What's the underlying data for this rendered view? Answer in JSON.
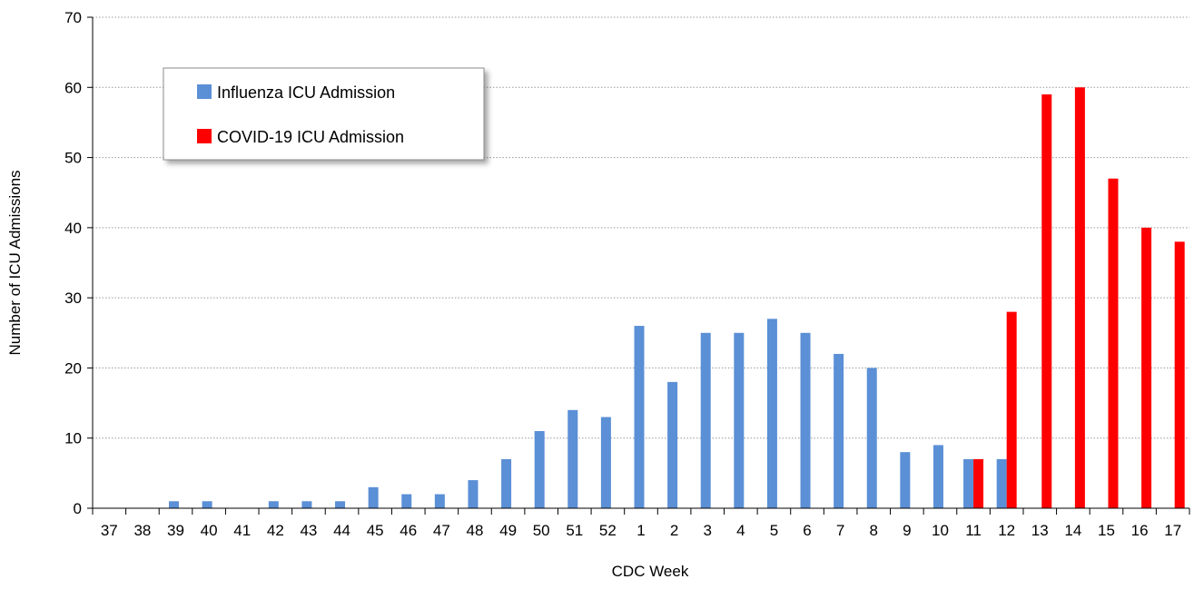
{
  "chart_data": {
    "type": "bar",
    "title": "",
    "xlabel": "CDC Week",
    "ylabel": "Number of ICU Admissions",
    "ylim": [
      0,
      70
    ],
    "yticks": [
      0,
      10,
      20,
      30,
      40,
      50,
      60,
      70
    ],
    "grid": "horizontal dotted",
    "legend_position": "top-left",
    "categories": [
      "37",
      "38",
      "39",
      "40",
      "41",
      "42",
      "43",
      "44",
      "45",
      "46",
      "47",
      "48",
      "49",
      "50",
      "51",
      "52",
      "1",
      "2",
      "3",
      "4",
      "5",
      "6",
      "7",
      "8",
      "9",
      "10",
      "11",
      "12",
      "13",
      "14",
      "15",
      "16",
      "17"
    ],
    "series": [
      {
        "name": "Influenza ICU Admission",
        "color": "#5B8FD6",
        "values": [
          0,
          0,
          1,
          1,
          0,
          1,
          1,
          1,
          3,
          2,
          2,
          4,
          7,
          11,
          14,
          13,
          26,
          18,
          25,
          25,
          27,
          25,
          22,
          20,
          8,
          9,
          7,
          7,
          0,
          0,
          0,
          0,
          0
        ]
      },
      {
        "name": "COVID-19 ICU Admission",
        "color": "#FF0000",
        "values": [
          0,
          0,
          0,
          0,
          0,
          0,
          0,
          0,
          0,
          0,
          0,
          0,
          0,
          0,
          0,
          0,
          0,
          0,
          0,
          0,
          0,
          0,
          0,
          0,
          0,
          0,
          7,
          28,
          59,
          60,
          47,
          40,
          38
        ]
      }
    ]
  }
}
